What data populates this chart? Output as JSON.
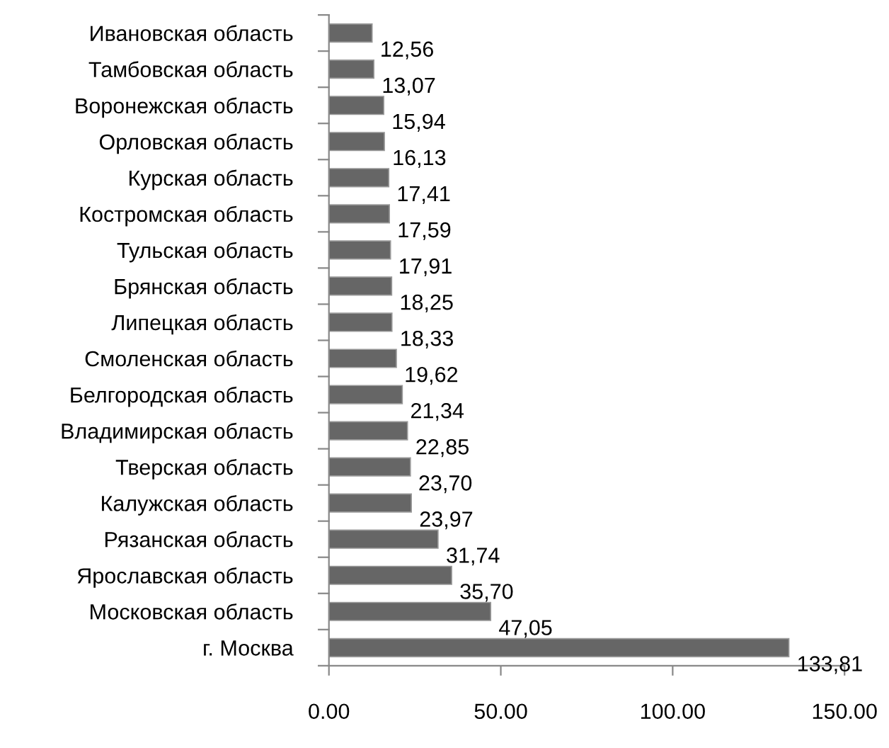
{
  "chart_data": {
    "type": "bar",
    "orientation": "horizontal",
    "categories": [
      "Ивановская область",
      "Тамбовская область",
      "Воронежская область",
      "Орловская область",
      "Курская область",
      "Костромская область",
      "Тульская область",
      "Брянская область",
      "Липецкая область",
      "Смоленская область",
      "Белгородская область",
      "Владимирская область",
      "Тверская область",
      "Калужская область",
      "Рязанская область",
      "Ярославская область",
      "Московская область",
      "г. Москва"
    ],
    "values": [
      12.56,
      13.07,
      15.94,
      16.13,
      17.41,
      17.59,
      17.91,
      18.25,
      18.33,
      19.62,
      21.34,
      22.85,
      23.7,
      23.97,
      31.74,
      35.7,
      47.05,
      133.81
    ],
    "value_labels": [
      "12,56",
      "13,07",
      "15,94",
      "16,13",
      "17,41",
      "17,59",
      "17,91",
      "18,25",
      "18,33",
      "19,62",
      "21,34",
      "22,85",
      "23,70",
      "23,97",
      "31,74",
      "35,70",
      "47,05",
      "133,81"
    ],
    "color": "#666666",
    "xlim": [
      0,
      150
    ],
    "xticks": [
      {
        "value": 0,
        "label": "0.00"
      },
      {
        "value": 50,
        "label": "50.00"
      },
      {
        "value": 100,
        "label": "100.00"
      },
      {
        "value": 150,
        "label": "150.00"
      }
    ],
    "grid": false,
    "legend": false
  }
}
